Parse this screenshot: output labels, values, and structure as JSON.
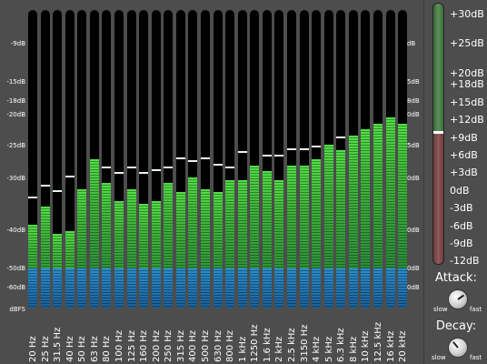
{
  "analyzer": {
    "db_left": [
      "-9dB",
      "-15dB",
      "-18dB",
      "-20dB",
      "-25dB",
      "-30dB",
      "-40dB",
      "-50dB",
      "-60dB",
      "dBFS"
    ],
    "db_right": [
      "-9dB",
      "-15dB",
      "-18dB",
      "-20dB",
      "-25dB",
      "-30dB",
      "-40dB",
      "-50dB",
      "-60dB"
    ],
    "bands": [
      {
        "label": "20 Hz",
        "level": 0.28,
        "peak": 0.37
      },
      {
        "label": "25 Hz",
        "level": 0.34,
        "peak": 0.41
      },
      {
        "label": "31.5 Hz",
        "level": 0.25,
        "peak": 0.39
      },
      {
        "label": "40 Hz",
        "level": 0.26,
        "peak": 0.44
      },
      {
        "label": "50 Hz",
        "level": 0.4,
        "peak": 0.4
      },
      {
        "label": "63 Hz",
        "level": 0.5,
        "peak": 0.5
      },
      {
        "label": "80 Hz",
        "level": 0.42,
        "peak": 0.47
      },
      {
        "label": "100 Hz",
        "level": 0.36,
        "peak": 0.45
      },
      {
        "label": "125 Hz",
        "level": 0.4,
        "peak": 0.47
      },
      {
        "label": "160 Hz",
        "level": 0.35,
        "peak": 0.45
      },
      {
        "label": "200 Hz",
        "level": 0.36,
        "peak": 0.46
      },
      {
        "label": "250 Hz",
        "level": 0.42,
        "peak": 0.47
      },
      {
        "label": "315 Hz",
        "level": 0.39,
        "peak": 0.5
      },
      {
        "label": "400 Hz",
        "level": 0.44,
        "peak": 0.49
      },
      {
        "label": "500 Hz",
        "level": 0.4,
        "peak": 0.5
      },
      {
        "label": "630 Hz",
        "level": 0.39,
        "peak": 0.48
      },
      {
        "label": "800 Hz",
        "level": 0.43,
        "peak": 0.47
      },
      {
        "label": "1 kHz",
        "level": 0.43,
        "peak": 0.52
      },
      {
        "label": "1250 Hz",
        "level": 0.48,
        "peak": 0.48
      },
      {
        "label": "1.6 kHz",
        "level": 0.46,
        "peak": 0.51
      },
      {
        "label": "2 kHz",
        "level": 0.43,
        "peak": 0.51
      },
      {
        "label": "2.5 kHz",
        "level": 0.48,
        "peak": 0.53
      },
      {
        "label": "3150 Hz",
        "level": 0.48,
        "peak": 0.53
      },
      {
        "label": "4 kHz",
        "level": 0.5,
        "peak": 0.54
      },
      {
        "label": "5 kHz",
        "level": 0.55,
        "peak": 0.55
      },
      {
        "label": "6.3 kHz",
        "level": 0.53,
        "peak": 0.57
      },
      {
        "label": "8 kHz",
        "level": 0.58,
        "peak": 0.58
      },
      {
        "label": "10 kHz",
        "level": 0.6,
        "peak": 0.6
      },
      {
        "label": "12.5 kHz",
        "level": 0.62,
        "peak": 0.62
      },
      {
        "label": "16 kHz",
        "level": 0.64,
        "peak": 0.64
      },
      {
        "label": "20 kHz",
        "level": 0.62,
        "peak": 0.62
      }
    ]
  },
  "meter": {
    "labels": [
      "+30dB",
      "+25dB",
      "+20dB",
      "+18dB",
      "+15dB",
      "+12dB",
      "+9dB",
      "+6dB",
      "+3dB",
      "0dB",
      "-3dB",
      "-6dB",
      "-9dB",
      "-12dB"
    ]
  },
  "attack": {
    "title": "Attack:",
    "slow": "slow",
    "fast": "fast"
  },
  "decay": {
    "title": "Decay:",
    "slow": "slow",
    "fast": "fast"
  },
  "colors": {
    "background": "#4d4d4d",
    "band_bg": "#000000",
    "level_green": "#3fb53a",
    "level_blue": "#2a8fd0",
    "meter_green": "#5b8f5b",
    "meter_red": "#8f5b5b"
  }
}
